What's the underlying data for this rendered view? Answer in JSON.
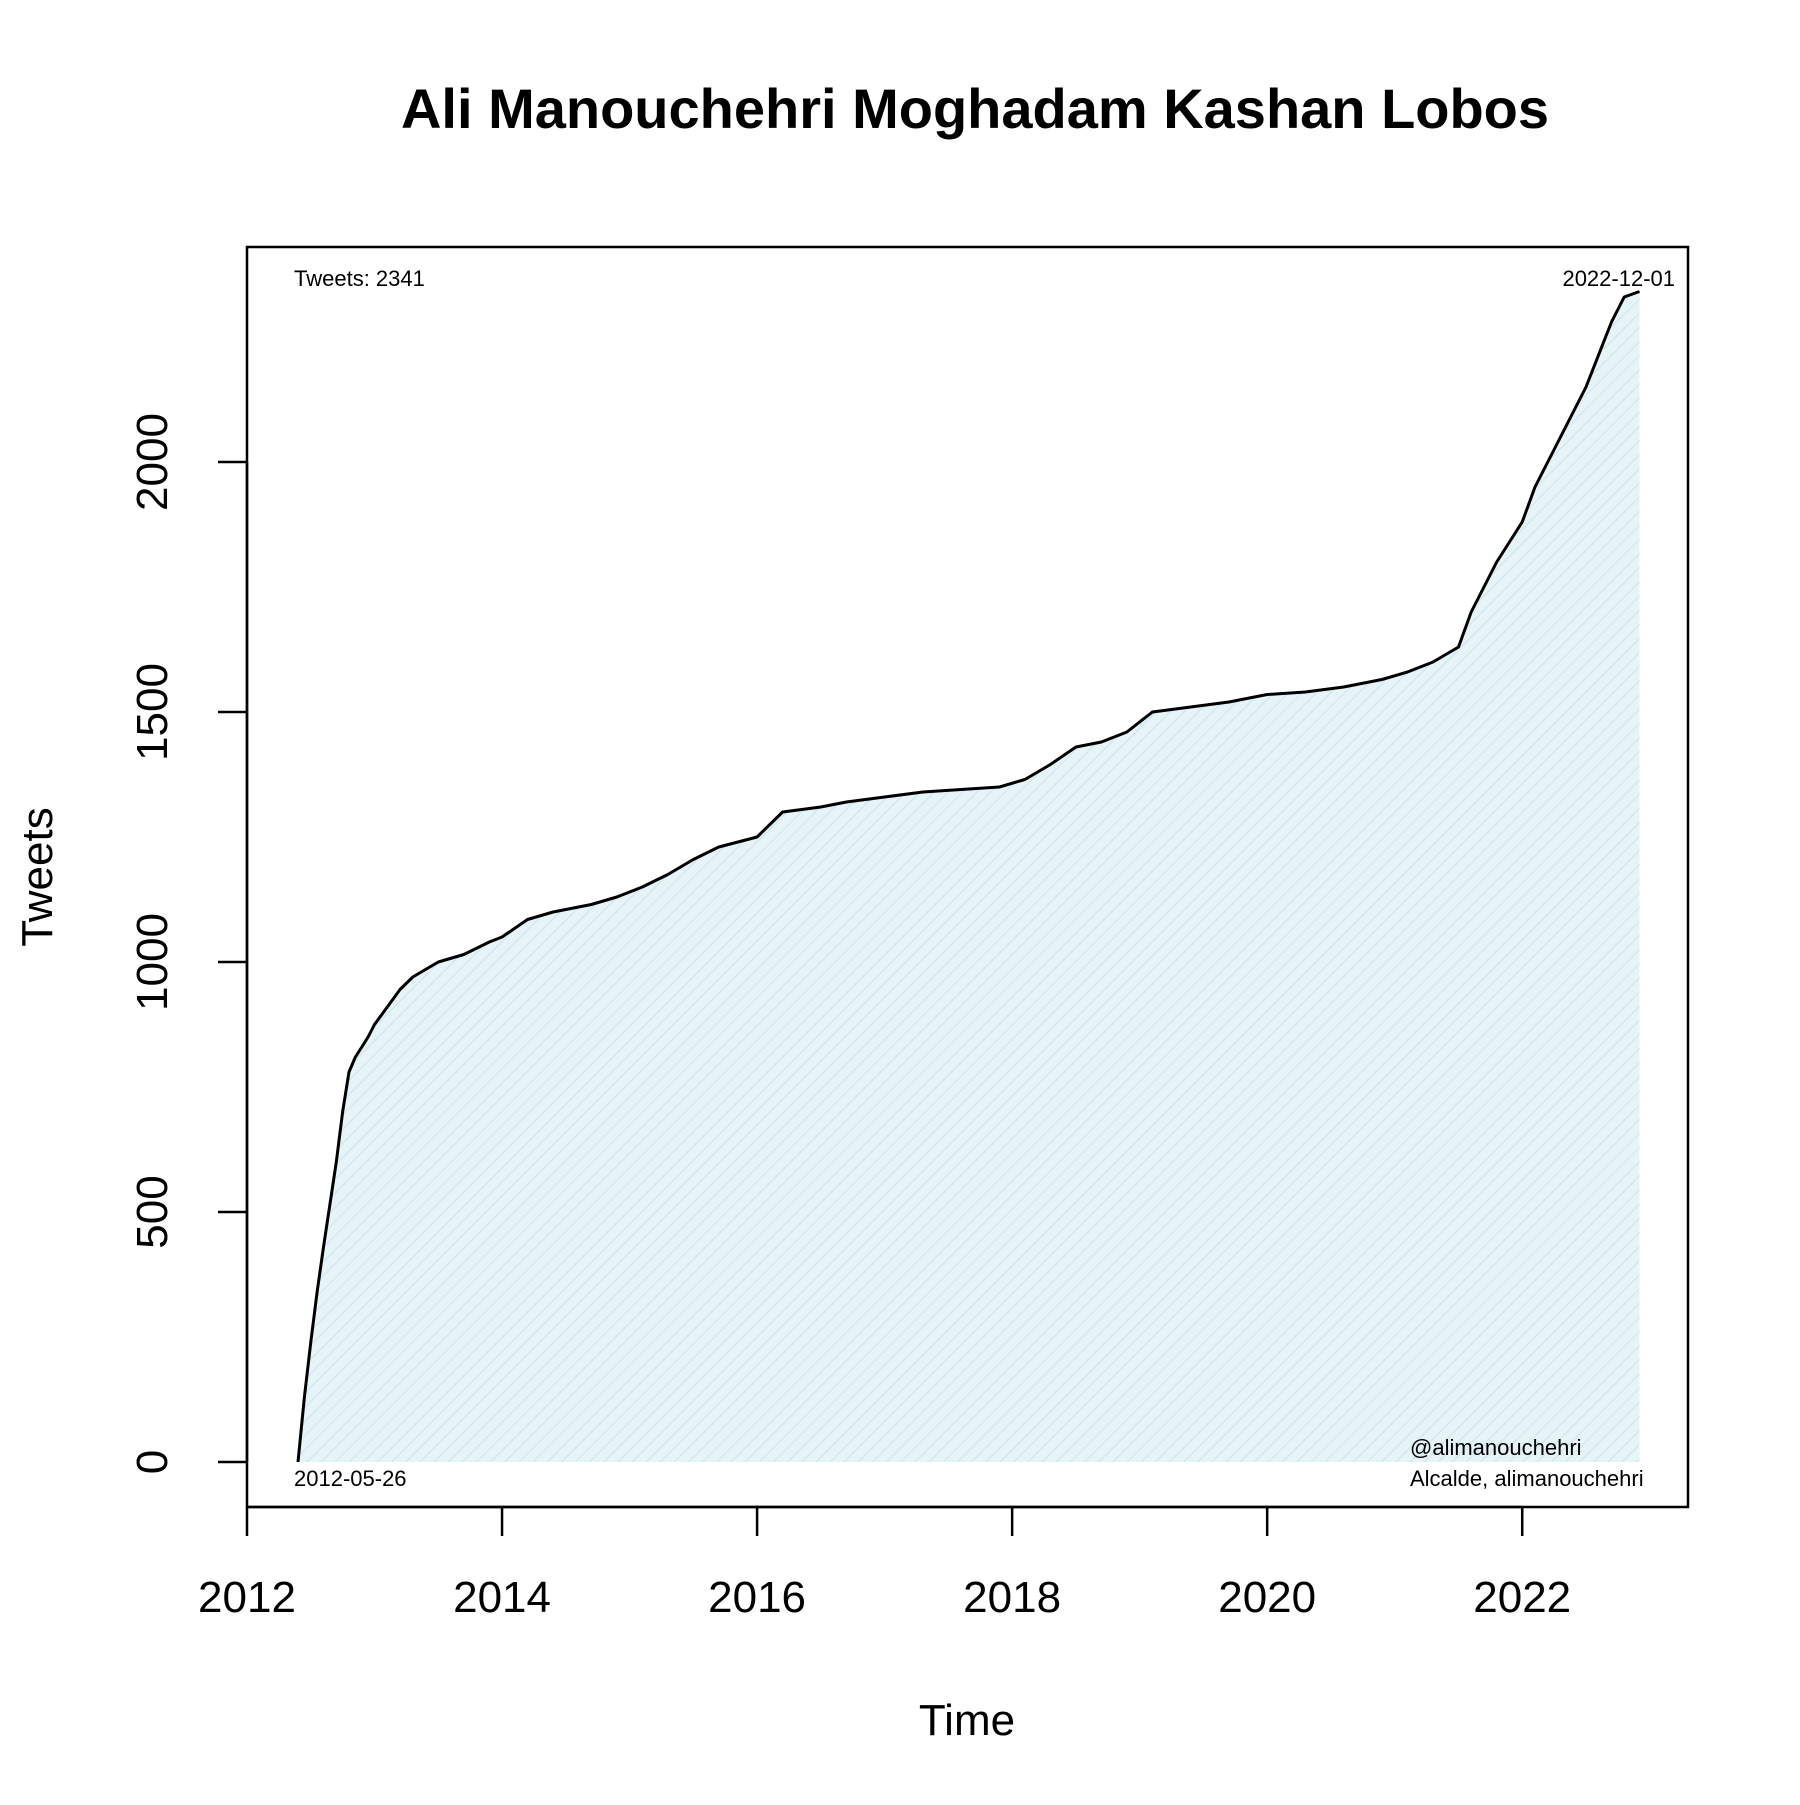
{
  "colors": {
    "line": "#000000",
    "fill": "#e6f3f7",
    "hatch": "#d3e9f1",
    "frame": "#000000",
    "background": "#ffffff"
  },
  "chart_data": {
    "type": "area",
    "title": "Ali Manouchehri Moghadam Kashan Lobos",
    "xlabel": "Time",
    "ylabel": "Tweets",
    "xlim": [
      2012.0,
      2023.3
    ],
    "ylim": [
      -90,
      2430
    ],
    "x_ticks": [
      2012,
      2014,
      2016,
      2018,
      2020,
      2022
    ],
    "x_tick_labels": [
      "2012",
      "2014",
      "2016",
      "2018",
      "2020",
      "2022"
    ],
    "y_ticks": [
      0,
      500,
      1000,
      1500,
      2000
    ],
    "y_tick_labels": [
      "0",
      "500",
      "1000",
      "1500",
      "2000"
    ],
    "grid": false,
    "annotations": {
      "top_left": "Tweets: 2341",
      "top_right": "2022-12-01",
      "bottom_left": "2012-05-26",
      "bottom_right_line1": "@alimanouchehri",
      "bottom_right_line2": "Alcalde, alimanouchehri"
    },
    "series": [
      {
        "x": [
          2012.4,
          2012.45,
          2012.5,
          2012.55,
          2012.6,
          2012.7,
          2012.75,
          2012.8,
          2012.85,
          2012.9,
          2012.95,
          2013.0,
          2013.1,
          2013.2,
          2013.3,
          2013.4,
          2013.5,
          2013.7,
          2013.9,
          2014.0,
          2014.2,
          2014.4,
          2014.7,
          2014.9,
          2015.1,
          2015.3,
          2015.5,
          2015.7,
          2016.0,
          2016.2,
          2016.5,
          2016.7,
          2017.0,
          2017.3,
          2017.6,
          2017.9,
          2018.1,
          2018.3,
          2018.5,
          2018.7,
          2018.9,
          2019.1,
          2019.4,
          2019.7,
          2020.0,
          2020.3,
          2020.6,
          2020.9,
          2021.1,
          2021.3,
          2021.5,
          2021.6,
          2021.8,
          2022.0,
          2022.1,
          2022.3,
          2022.5,
          2022.7,
          2022.8,
          2022.92
        ],
        "y": [
          0,
          130,
          240,
          340,
          430,
          600,
          700,
          780,
          810,
          830,
          850,
          875,
          910,
          945,
          970,
          985,
          1000,
          1015,
          1040,
          1050,
          1085,
          1100,
          1115,
          1130,
          1150,
          1175,
          1205,
          1230,
          1250,
          1300,
          1310,
          1320,
          1330,
          1340,
          1345,
          1350,
          1365,
          1395,
          1430,
          1440,
          1460,
          1500,
          1510,
          1520,
          1535,
          1540,
          1550,
          1565,
          1580,
          1600,
          1630,
          1700,
          1800,
          1880,
          1950,
          2050,
          2150,
          2280,
          2330,
          2341
        ]
      }
    ]
  }
}
